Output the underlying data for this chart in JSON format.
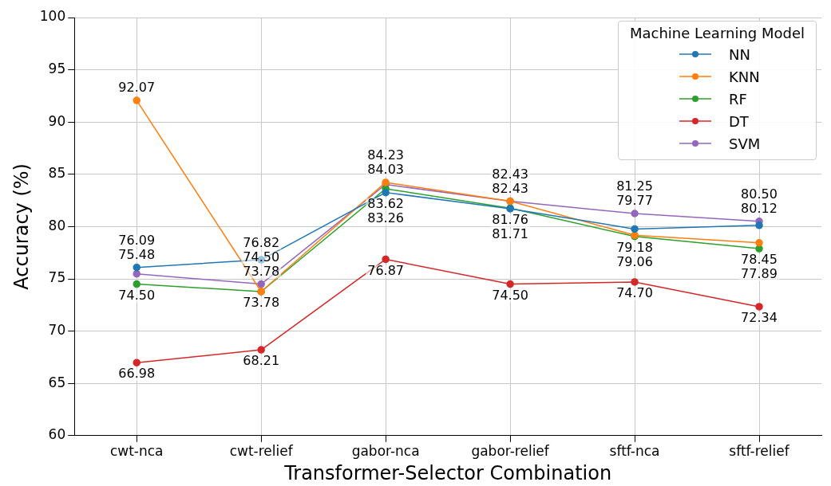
{
  "chart_data": {
    "type": "line",
    "xlabel": "Transformer-Selector Combination",
    "ylabel": "Accuracy (%)",
    "legend_title": "Machine Learning Model",
    "categories": [
      "cwt-nca",
      "cwt-relief",
      "gabor-nca",
      "gabor-relief",
      "sftf-nca",
      "sftf-relief"
    ],
    "series": [
      {
        "name": "NN",
        "color": "#1f77b4",
        "values": [
          76.09,
          76.82,
          83.26,
          81.71,
          79.77,
          80.12
        ],
        "value_labels": [
          "76.09",
          "76.82",
          "83.26",
          "81.71",
          "79.77",
          "80.12"
        ]
      },
      {
        "name": "KNN",
        "color": "#ff7f0e",
        "values": [
          92.07,
          73.78,
          84.23,
          82.43,
          79.18,
          78.45
        ],
        "value_labels": [
          "92.07",
          "73.78",
          "84.23",
          "82.43",
          "79.18",
          "78.45"
        ]
      },
      {
        "name": "RF",
        "color": "#2ca02c",
        "values": [
          74.5,
          73.78,
          83.62,
          81.76,
          79.06,
          77.89
        ],
        "value_labels": [
          "74.50",
          "73.78",
          "83.62",
          "81.76",
          "79.06",
          "77.89"
        ]
      },
      {
        "name": "DT",
        "color": "#d62728",
        "values": [
          66.98,
          68.21,
          76.87,
          74.5,
          74.7,
          72.34
        ],
        "value_labels": [
          "66.98",
          "68.21",
          "76.87",
          "74.50",
          "74.70",
          "72.34"
        ]
      },
      {
        "name": "SVM",
        "color": "#9467bd",
        "values": [
          75.48,
          74.5,
          84.03,
          82.43,
          81.25,
          80.5
        ],
        "value_labels": [
          "75.48",
          "74.50",
          "84.03",
          "82.43",
          "81.25",
          "80.50"
        ]
      }
    ],
    "ylim": [
      60,
      100
    ],
    "yticks": [
      60,
      65,
      70,
      75,
      80,
      85,
      90,
      95,
      100
    ],
    "grid": true,
    "legend": "top right",
    "marker": "circle"
  }
}
